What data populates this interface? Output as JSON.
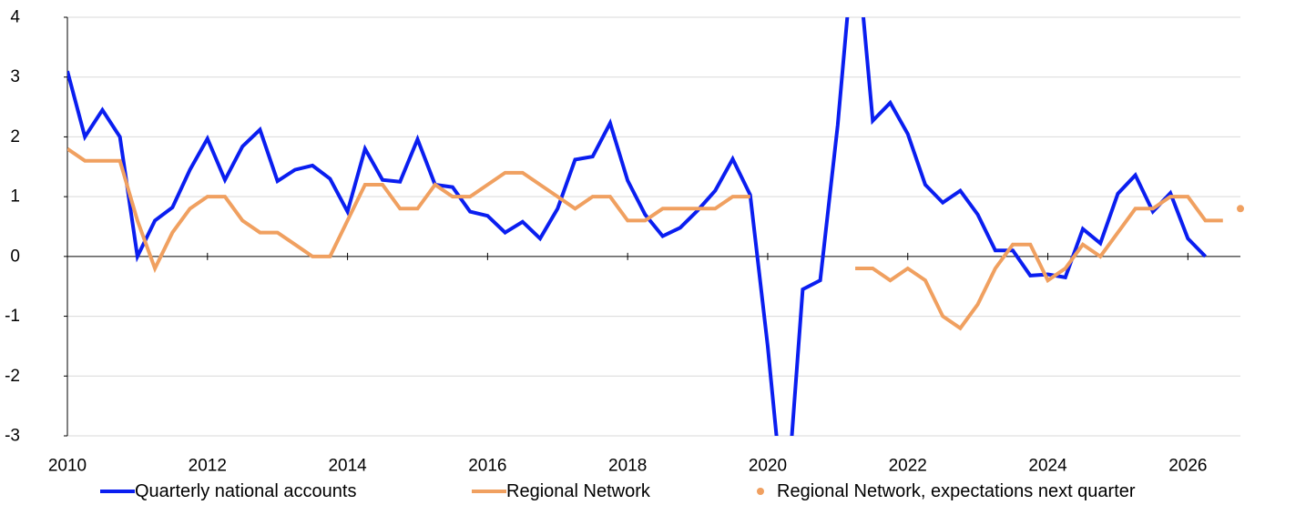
{
  "chart_data": {
    "type": "line",
    "xlim": [
      2010,
      2026.75
    ],
    "ylim": [
      -3,
      4
    ],
    "x_ticks": [
      2010,
      2012,
      2014,
      2016,
      2018,
      2020,
      2022,
      2024,
      2026
    ],
    "x_tick_labels": [
      "2010",
      "2012",
      "2014",
      "2016",
      "2018",
      "2020",
      "2022",
      "2024",
      "2026"
    ],
    "y_ticks": [
      4,
      3,
      2,
      1,
      0,
      -1,
      -2,
      -3
    ],
    "y_tick_labels": [
      "4",
      "3",
      "2",
      "1",
      "0",
      "-1",
      "-2",
      "-3"
    ],
    "grid": "horizontal",
    "legend_position": "bottom",
    "series": [
      {
        "name": "Quarterly national accounts",
        "kind": "line",
        "color": "#0a1ef0",
        "points": [
          [
            2010.0,
            3.1
          ],
          [
            2010.25,
            2.0
          ],
          [
            2010.5,
            2.45
          ],
          [
            2010.75,
            2.0
          ],
          [
            2011.0,
            0.0
          ],
          [
            2011.25,
            0.6
          ],
          [
            2011.5,
            0.82
          ],
          [
            2011.75,
            1.45
          ],
          [
            2012.0,
            1.97
          ],
          [
            2012.25,
            1.28
          ],
          [
            2012.5,
            1.84
          ],
          [
            2012.75,
            2.12
          ],
          [
            2013.0,
            1.26
          ],
          [
            2013.25,
            1.45
          ],
          [
            2013.5,
            1.52
          ],
          [
            2013.75,
            1.3
          ],
          [
            2014.0,
            0.75
          ],
          [
            2014.25,
            1.8
          ],
          [
            2014.5,
            1.28
          ],
          [
            2014.75,
            1.25
          ],
          [
            2015.0,
            1.96
          ],
          [
            2015.25,
            1.2
          ],
          [
            2015.5,
            1.16
          ],
          [
            2015.75,
            0.75
          ],
          [
            2016.0,
            0.68
          ],
          [
            2016.25,
            0.4
          ],
          [
            2016.5,
            0.58
          ],
          [
            2016.75,
            0.3
          ],
          [
            2017.0,
            0.8
          ],
          [
            2017.25,
            1.62
          ],
          [
            2017.5,
            1.67
          ],
          [
            2017.75,
            2.23
          ],
          [
            2018.0,
            1.27
          ],
          [
            2018.25,
            0.7
          ],
          [
            2018.5,
            0.34
          ],
          [
            2018.75,
            0.48
          ],
          [
            2019.0,
            0.77
          ],
          [
            2019.25,
            1.1
          ],
          [
            2019.5,
            1.63
          ],
          [
            2019.75,
            1.03
          ],
          [
            2020.0,
            -1.5
          ],
          [
            2020.25,
            -4.5
          ],
          [
            2020.5,
            -0.55
          ],
          [
            2020.75,
            -0.4
          ],
          [
            2021.0,
            2.2
          ],
          [
            2021.25,
            5.5
          ],
          [
            2021.5,
            2.27
          ],
          [
            2021.75,
            2.57
          ],
          [
            2022.0,
            2.05
          ],
          [
            2022.25,
            1.2
          ],
          [
            2022.5,
            0.9
          ],
          [
            2022.75,
            1.1
          ],
          [
            2023.0,
            0.7
          ],
          [
            2023.25,
            0.1
          ],
          [
            2023.5,
            0.1
          ],
          [
            2023.75,
            -0.32
          ],
          [
            2024.0,
            -0.3
          ],
          [
            2024.25,
            -0.35
          ],
          [
            2024.5,
            0.46
          ],
          [
            2024.75,
            0.22
          ],
          [
            2025.0,
            1.05
          ],
          [
            2025.25,
            1.36
          ],
          [
            2025.5,
            0.75
          ],
          [
            2025.75,
            1.06
          ],
          [
            2026.0,
            0.3
          ],
          [
            2026.25,
            0.0
          ]
        ]
      },
      {
        "name": "Regional Network",
        "kind": "line",
        "color": "#f0a060",
        "segments": [
          [
            [
              2010.0,
              1.8
            ],
            [
              2010.25,
              1.6
            ],
            [
              2010.5,
              1.6
            ],
            [
              2010.75,
              1.6
            ],
            [
              2011.0,
              0.6
            ],
            [
              2011.25,
              -0.2
            ],
            [
              2011.5,
              0.4
            ],
            [
              2011.75,
              0.8
            ],
            [
              2012.0,
              1.0
            ],
            [
              2012.25,
              1.0
            ],
            [
              2012.5,
              0.6
            ],
            [
              2012.75,
              0.4
            ],
            [
              2013.0,
              0.4
            ],
            [
              2013.25,
              0.2
            ],
            [
              2013.5,
              0.0
            ],
            [
              2013.75,
              0.0
            ],
            [
              2014.0,
              0.6
            ],
            [
              2014.25,
              1.2
            ],
            [
              2014.5,
              1.2
            ],
            [
              2014.75,
              0.8
            ],
            [
              2015.0,
              0.8
            ],
            [
              2015.25,
              1.2
            ],
            [
              2015.5,
              1.0
            ],
            [
              2015.75,
              1.0
            ],
            [
              2016.0,
              1.2
            ],
            [
              2016.25,
              1.4
            ],
            [
              2016.5,
              1.4
            ],
            [
              2016.75,
              1.2
            ],
            [
              2017.0,
              1.0
            ],
            [
              2017.25,
              0.8
            ],
            [
              2017.5,
              1.0
            ],
            [
              2017.75,
              1.0
            ],
            [
              2018.0,
              0.6
            ],
            [
              2018.25,
              0.6
            ],
            [
              2018.5,
              0.8
            ],
            [
              2018.75,
              0.8
            ],
            [
              2019.0,
              0.8
            ],
            [
              2019.25,
              0.8
            ],
            [
              2019.5,
              1.0
            ],
            [
              2019.75,
              1.0
            ]
          ],
          [
            [
              2021.25,
              -0.2
            ],
            [
              2021.5,
              -0.2
            ],
            [
              2021.75,
              -0.4
            ],
            [
              2022.0,
              -0.2
            ],
            [
              2022.25,
              -0.4
            ],
            [
              2022.5,
              -1.0
            ],
            [
              2022.75,
              -1.2
            ],
            [
              2023.0,
              -0.8
            ],
            [
              2023.25,
              -0.2
            ],
            [
              2023.5,
              0.2
            ],
            [
              2023.75,
              0.2
            ],
            [
              2024.0,
              -0.4
            ],
            [
              2024.25,
              -0.2
            ],
            [
              2024.5,
              0.2
            ],
            [
              2024.75,
              0.0
            ],
            [
              2025.0,
              0.4
            ],
            [
              2025.25,
              0.8
            ],
            [
              2025.5,
              0.8
            ],
            [
              2025.75,
              1.0
            ],
            [
              2026.0,
              1.0
            ],
            [
              2026.25,
              0.6
            ],
            [
              2026.5,
              0.6
            ]
          ]
        ]
      },
      {
        "name": "Regional Network, expectations next quarter",
        "kind": "point",
        "color": "#f0a060",
        "points": [
          [
            2026.75,
            0.8
          ]
        ]
      }
    ]
  }
}
